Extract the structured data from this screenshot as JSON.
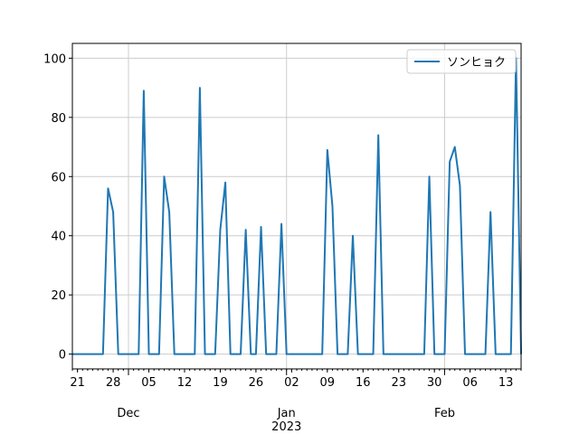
{
  "chart_data": {
    "type": "line",
    "series": [
      {
        "name": "ソンヒョク",
        "color": "#1f77b4",
        "values": [
          0,
          0,
          0,
          0,
          0,
          0,
          0,
          56,
          48,
          0,
          0,
          0,
          0,
          0,
          89,
          0,
          0,
          0,
          60,
          48,
          0,
          0,
          0,
          0,
          0,
          90,
          0,
          0,
          0,
          42,
          58,
          0,
          0,
          0,
          42,
          0,
          0,
          43,
          0,
          0,
          0,
          44,
          0,
          0,
          0,
          0,
          0,
          0,
          0,
          0,
          69,
          50,
          0,
          0,
          0,
          40,
          0,
          0,
          0,
          0,
          74,
          0,
          0,
          0,
          0,
          0,
          0,
          0,
          0,
          0,
          60,
          0,
          0,
          0,
          65,
          70,
          57,
          0,
          0,
          0,
          0,
          0,
          48,
          0,
          0,
          0,
          0,
          100,
          0
        ]
      }
    ],
    "xlim": [
      0,
      88
    ],
    "xticks": [
      {
        "value": 1,
        "label": "21"
      },
      {
        "value": 8,
        "label": "28"
      },
      {
        "value": 15,
        "label": "05"
      },
      {
        "value": 22,
        "label": "12"
      },
      {
        "value": 29,
        "label": "19"
      },
      {
        "value": 36,
        "label": "26"
      },
      {
        "value": 43,
        "label": "02"
      },
      {
        "value": 50,
        "label": "09"
      },
      {
        "value": 57,
        "label": "16"
      },
      {
        "value": 64,
        "label": "23"
      },
      {
        "value": 71,
        "label": "30"
      },
      {
        "value": 78,
        "label": "06"
      },
      {
        "value": 85,
        "label": "13"
      }
    ],
    "month_ticks": [
      {
        "value": 11,
        "label": "Dec"
      },
      {
        "value": 42,
        "label": "Jan"
      },
      {
        "value": 73,
        "label": "Feb"
      }
    ],
    "year_label": {
      "value": 42,
      "label": "2023"
    },
    "ylim": [
      -5,
      105
    ],
    "yticks": [
      0,
      20,
      40,
      60,
      80,
      100
    ],
    "grid": true,
    "legend": "upper right"
  }
}
